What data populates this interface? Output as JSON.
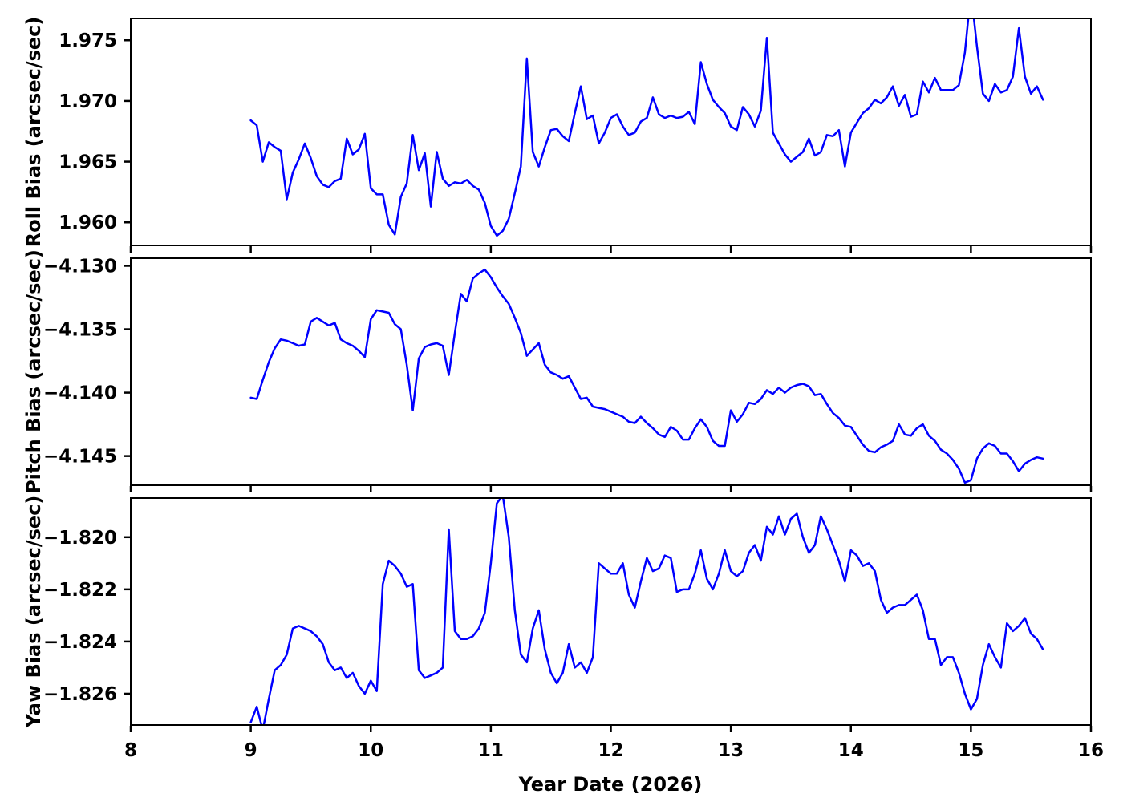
{
  "figure": {
    "background": "#ffffff",
    "line_color": "#0000ff",
    "axis_color": "#000000"
  },
  "xaxis": {
    "label": "Year Date (2026)",
    "xlim": [
      8,
      16
    ],
    "tick_values": [
      8,
      9,
      10,
      11,
      12,
      13,
      14,
      15,
      16
    ],
    "tick_labels": [
      "8",
      "9",
      "10",
      "11",
      "12",
      "13",
      "14",
      "15",
      "16"
    ]
  },
  "chart_data": [
    {
      "type": "line",
      "name": "roll-bias",
      "ylabel": "Roll Bias (arcsec/sec)",
      "ylim": [
        1.9581,
        1.9768
      ],
      "ytick_values": [
        1.975,
        1.97,
        1.965,
        1.96
      ],
      "ytick_labels": [
        "1.975",
        "1.970",
        "1.965",
        "1.960"
      ],
      "grid": false,
      "x_start": 9.0,
      "x_step": 0.05,
      "values": [
        1.9684,
        1.968,
        1.965,
        1.9666,
        1.9662,
        1.9659,
        1.9619,
        1.9641,
        1.9652,
        1.9665,
        1.9653,
        1.9638,
        1.9631,
        1.9629,
        1.9634,
        1.9636,
        1.9669,
        1.9656,
        1.966,
        1.9673,
        1.9628,
        1.9623,
        1.9623,
        1.9598,
        1.959,
        1.9621,
        1.9632,
        1.9672,
        1.9643,
        1.9657,
        1.9613,
        1.9658,
        1.9636,
        1.963,
        1.9633,
        1.9632,
        1.9635,
        1.963,
        1.9627,
        1.9616,
        1.9597,
        1.9589,
        1.9593,
        1.9603,
        1.9624,
        1.9646,
        1.9735,
        1.9658,
        1.9646,
        1.9662,
        1.9676,
        1.9677,
        1.9671,
        1.9667,
        1.969,
        1.9712,
        1.9685,
        1.9688,
        1.9665,
        1.9674,
        1.9686,
        1.9689,
        1.9679,
        1.9672,
        1.9674,
        1.9683,
        1.9686,
        1.9703,
        1.9689,
        1.9686,
        1.9688,
        1.9686,
        1.9687,
        1.9691,
        1.9681,
        1.9732,
        1.9714,
        1.9701,
        1.9695,
        1.969,
        1.9679,
        1.9676,
        1.9695,
        1.9689,
        1.9679,
        1.9692,
        1.9752,
        1.9674,
        1.9665,
        1.9656,
        1.965,
        1.9654,
        1.9658,
        1.9669,
        1.9655,
        1.9658,
        1.9672,
        1.9671,
        1.9676,
        1.9646,
        1.9674,
        1.9682,
        1.969,
        1.9694,
        1.9701,
        1.9698,
        1.9703,
        1.9712,
        1.9696,
        1.9705,
        1.9687,
        1.9689,
        1.9716,
        1.9707,
        1.9719,
        1.9709,
        1.9709,
        1.9709,
        1.9713,
        1.974,
        1.979,
        1.9745,
        1.9706,
        1.97,
        1.9714,
        1.9707,
        1.9709,
        1.972,
        1.976,
        1.972,
        1.9706,
        1.9712,
        1.9701
      ]
    },
    {
      "type": "line",
      "name": "pitch-bias",
      "ylabel": "Pitch Bias (arcsec/sec)",
      "ylim": [
        -4.1473,
        -4.1294
      ],
      "ytick_values": [
        -4.13,
        -4.135,
        -4.14,
        -4.145
      ],
      "ytick_labels": [
        "−4.130",
        "−4.135",
        "−4.140",
        "−4.145"
      ],
      "grid": false,
      "x_start": 9.0,
      "x_step": 0.05,
      "values": [
        -4.1404,
        -4.1405,
        -4.139,
        -4.1376,
        -4.1365,
        -4.1358,
        -4.1359,
        -4.1361,
        -4.1363,
        -4.1362,
        -4.1344,
        -4.1341,
        -4.1344,
        -4.1347,
        -4.1345,
        -4.1358,
        -4.1361,
        -4.1363,
        -4.1367,
        -4.1372,
        -4.1342,
        -4.1335,
        -4.1336,
        -4.1337,
        -4.1346,
        -4.135,
        -4.1378,
        -4.1414,
        -4.1373,
        -4.1364,
        -4.1362,
        -4.1361,
        -4.1363,
        -4.1386,
        -4.1353,
        -4.1322,
        -4.1328,
        -4.131,
        -4.1306,
        -4.1303,
        -4.1309,
        -4.1317,
        -4.1324,
        -4.133,
        -4.1341,
        -4.1353,
        -4.1371,
        -4.1366,
        -4.1361,
        -4.1378,
        -4.1384,
        -4.1386,
        -4.1389,
        -4.1387,
        -4.1396,
        -4.1405,
        -4.1404,
        -4.1411,
        -4.1412,
        -4.1413,
        -4.1415,
        -4.1417,
        -4.1419,
        -4.1423,
        -4.1424,
        -4.1419,
        -4.1424,
        -4.1428,
        -4.1433,
        -4.1435,
        -4.1427,
        -4.143,
        -4.1437,
        -4.1437,
        -4.1428,
        -4.1421,
        -4.1427,
        -4.1438,
        -4.1442,
        -4.1442,
        -4.1414,
        -4.1423,
        -4.1417,
        -4.1408,
        -4.1409,
        -4.1405,
        -4.1398,
        -4.1401,
        -4.1396,
        -4.14,
        -4.1396,
        -4.1394,
        -4.1393,
        -4.1395,
        -4.1402,
        -4.1401,
        -4.1409,
        -4.1416,
        -4.142,
        -4.1426,
        -4.1427,
        -4.1434,
        -4.1441,
        -4.1446,
        -4.1447,
        -4.1443,
        -4.1441,
        -4.1438,
        -4.1425,
        -4.1433,
        -4.1434,
        -4.1428,
        -4.1425,
        -4.1434,
        -4.1438,
        -4.1445,
        -4.1448,
        -4.1453,
        -4.146,
        -4.1471,
        -4.1469,
        -4.1452,
        -4.1444,
        -4.144,
        -4.1442,
        -4.1448,
        -4.1448,
        -4.1454,
        -4.1462,
        -4.1456,
        -4.1453,
        -4.1451,
        -4.1452
      ]
    },
    {
      "type": "line",
      "name": "yaw-bias",
      "ylabel": "Yaw Bias (arcsec/sec)",
      "ylim": [
        -1.8272,
        -1.8185
      ],
      "ytick_values": [
        -1.82,
        -1.822,
        -1.824,
        -1.826
      ],
      "ytick_labels": [
        "−1.820",
        "−1.822",
        "−1.824",
        "−1.826"
      ],
      "grid": false,
      "x_start": 9.0,
      "x_step": 0.05,
      "values": [
        -1.8271,
        -1.8265,
        -1.8274,
        -1.8262,
        -1.8251,
        -1.8249,
        -1.8245,
        -1.8235,
        -1.8234,
        -1.8235,
        -1.8236,
        -1.8238,
        -1.8241,
        -1.8248,
        -1.8251,
        -1.825,
        -1.8254,
        -1.8252,
        -1.8257,
        -1.826,
        -1.8255,
        -1.8259,
        -1.8218,
        -1.8209,
        -1.8211,
        -1.8214,
        -1.8219,
        -1.8218,
        -1.8251,
        -1.8254,
        -1.8253,
        -1.8252,
        -1.825,
        -1.8197,
        -1.8236,
        -1.8239,
        -1.8239,
        -1.8238,
        -1.8235,
        -1.8229,
        -1.821,
        -1.8187,
        -1.8184,
        -1.82,
        -1.8228,
        -1.8245,
        -1.8248,
        -1.8235,
        -1.8228,
        -1.8243,
        -1.8252,
        -1.8256,
        -1.8252,
        -1.8241,
        -1.825,
        -1.8248,
        -1.8252,
        -1.8246,
        -1.821,
        -1.8212,
        -1.8214,
        -1.8214,
        -1.821,
        -1.8222,
        -1.8227,
        -1.8217,
        -1.8208,
        -1.8213,
        -1.8212,
        -1.8207,
        -1.8208,
        -1.8221,
        -1.822,
        -1.822,
        -1.8214,
        -1.8205,
        -1.8216,
        -1.822,
        -1.8214,
        -1.8205,
        -1.8213,
        -1.8215,
        -1.8213,
        -1.8206,
        -1.8203,
        -1.8209,
        -1.8196,
        -1.8199,
        -1.8192,
        -1.8199,
        -1.8193,
        -1.8191,
        -1.82,
        -1.8206,
        -1.8203,
        -1.8192,
        -1.8197,
        -1.8203,
        -1.8209,
        -1.8217,
        -1.8205,
        -1.8207,
        -1.8211,
        -1.821,
        -1.8213,
        -1.8224,
        -1.8229,
        -1.8227,
        -1.8226,
        -1.8226,
        -1.8224,
        -1.8222,
        -1.8228,
        -1.8239,
        -1.8239,
        -1.8249,
        -1.8246,
        -1.8246,
        -1.8252,
        -1.826,
        -1.8266,
        -1.8262,
        -1.8249,
        -1.8241,
        -1.8246,
        -1.825,
        -1.8233,
        -1.8236,
        -1.8234,
        -1.8231,
        -1.8237,
        -1.8239,
        -1.8243
      ]
    }
  ]
}
